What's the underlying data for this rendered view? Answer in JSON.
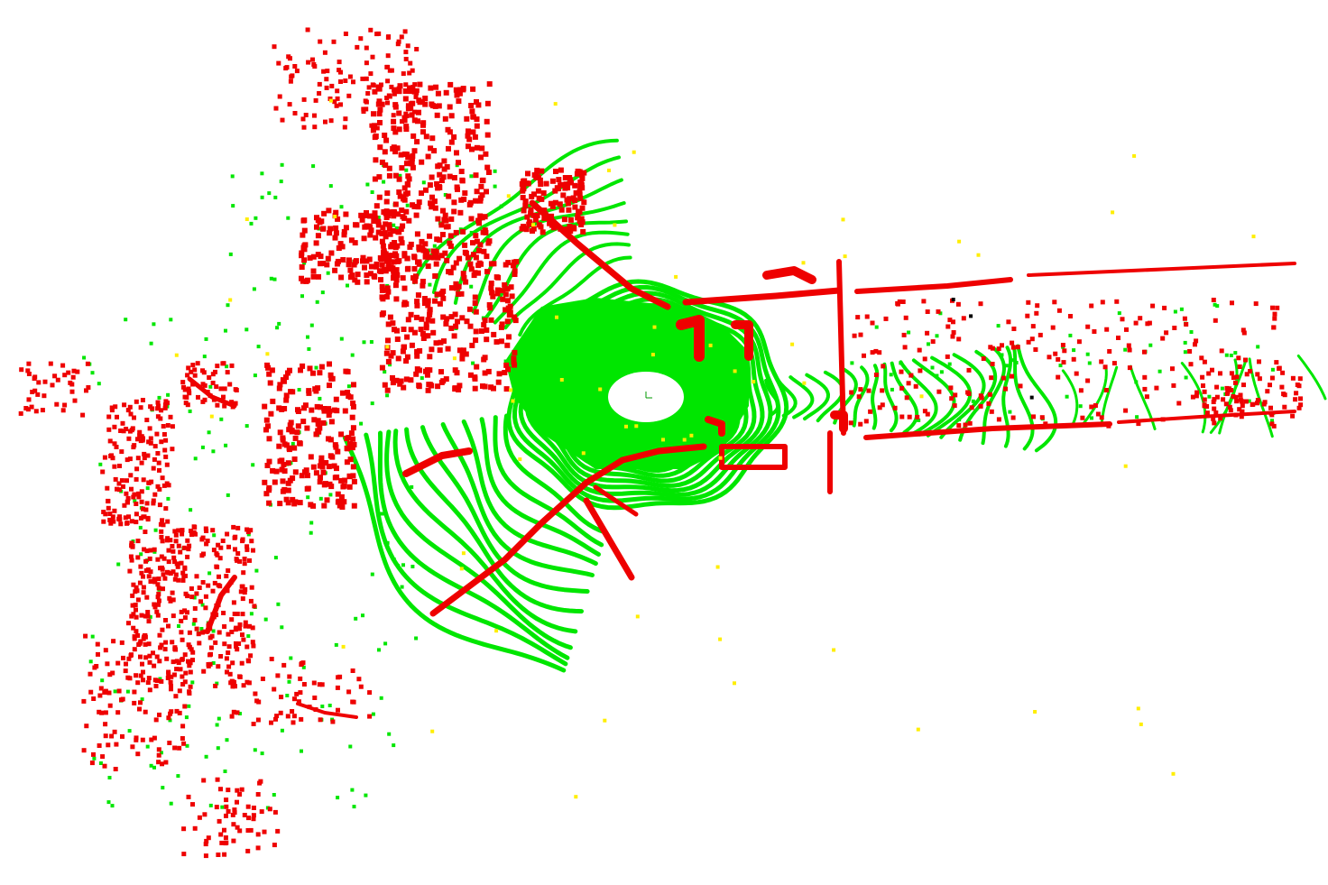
{
  "scene": {
    "background_color": "#ffffff",
    "legend_colors": {
      "ground": "#00e600",
      "obstacle": "#ee0000",
      "unlabeled": "#ffee00",
      "noise": "#000000"
    },
    "sensor_marker_color": "#009900"
  }
}
